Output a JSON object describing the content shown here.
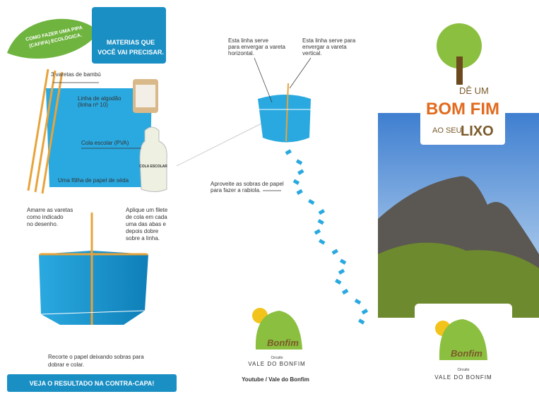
{
  "left_panel": {
    "leaf_title": [
      "COMO FAZER UMA PIPA",
      "(CAFIFA) ECOLÓGICA."
    ],
    "materials_header": [
      "MATERIAS QUE",
      "VOCÊ VAI PRECISAR."
    ],
    "materials": {
      "sticks": "3 varetas de bambú",
      "thread": [
        "Linha de algodão",
        "(linha nº 10)"
      ],
      "glue": "Cola escolar (PVA)",
      "glue_bottle_label": "COLA ESCOLAR",
      "paper": "Uma fôlha de papel de séda"
    },
    "steps": {
      "tie": [
        "Amarre as varetas",
        "como indicado",
        "no desenho."
      ],
      "glue": [
        "Aplique um filete",
        "de cola em cada",
        "uma das abas  e",
        "depois dobre",
        "sobre a linha."
      ],
      "cut": [
        "Recorte o papel deixando sobras para",
        "dobrar e colar."
      ]
    },
    "footer_banner": "VEJA O RESULTADO NA CONTRA-CAPA!"
  },
  "middle_panel": {
    "note_horizontal": [
      "Esta linha serve",
      "para envergar a vareta",
      "horizontal."
    ],
    "note_vertical": [
      "Esta linha serve para",
      "envergar a vareta",
      "vertical."
    ],
    "note_tail": [
      "Aproveite as sobras de papel",
      "para fazer a rabiola."
    ],
    "logo": {
      "name": "Bonfim",
      "circuit": "Circuito",
      "place": "VALE DO BONFIM"
    },
    "credit": "Youtube / Vale do Bonfim"
  },
  "right_panel": {
    "slogan": [
      "DÊ UM",
      "BOM FIM",
      "AO SEU",
      "LIXO"
    ],
    "logo": {
      "name": "Bonfim",
      "circuit": "Circuito",
      "place": "VALE DO BONFIM"
    }
  }
}
